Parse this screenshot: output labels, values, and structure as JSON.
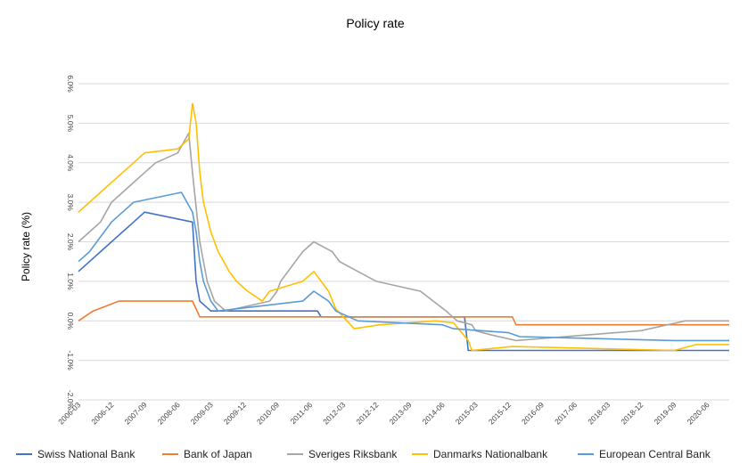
{
  "chart_data": {
    "type": "line",
    "title": "Policy rate",
    "xlabel": "",
    "ylabel": "Policy rate (%)",
    "ylim": [
      -2.0,
      6.0
    ],
    "y_ticks": [
      "6.0%",
      "5.0%",
      "4.0%",
      "3.0%",
      "2.0%",
      "1.0%",
      "0.0%",
      "-1.0%",
      "-2.0%"
    ],
    "y_tick_values": [
      6,
      5,
      4,
      3,
      2,
      1,
      0,
      -1,
      -2
    ],
    "x_range": [
      "2006-03",
      "2020-12"
    ],
    "x_ticks": [
      "2006-03",
      "2006-12",
      "2007-09",
      "2008-06",
      "2009-03",
      "2009-12",
      "2010-09",
      "2011-06",
      "2012-03",
      "2012-12",
      "2013-09",
      "2014-06",
      "2015-03",
      "2015-12",
      "2016-09",
      "2017-06",
      "2018-03",
      "2018-12",
      "2019-09",
      "2020-06"
    ],
    "grid": true,
    "legend_position": "bottom",
    "series": [
      {
        "name": "Swiss National Bank",
        "color": "#4472C4",
        "points": [
          [
            "2006-03",
            1.25
          ],
          [
            "2006-06",
            1.5
          ],
          [
            "2006-09",
            1.75
          ],
          [
            "2006-12",
            2.0
          ],
          [
            "2007-03",
            2.25
          ],
          [
            "2007-06",
            2.5
          ],
          [
            "2007-09",
            2.75
          ],
          [
            "2008-10",
            2.5
          ],
          [
            "2008-11",
            1.0
          ],
          [
            "2008-12",
            0.5
          ],
          [
            "2009-03",
            0.25
          ],
          [
            "2011-08",
            0.25
          ],
          [
            "2011-09",
            0.1
          ],
          [
            "2014-12",
            0.1
          ],
          [
            "2015-01",
            -0.75
          ],
          [
            "2020-12",
            -0.75
          ]
        ]
      },
      {
        "name": "Bank of Japan",
        "color": "#ED7D31",
        "points": [
          [
            "2006-03",
            0.0
          ],
          [
            "2006-07",
            0.25
          ],
          [
            "2007-02",
            0.5
          ],
          [
            "2008-10",
            0.5
          ],
          [
            "2008-11",
            0.3
          ],
          [
            "2008-12",
            0.1
          ],
          [
            "2016-01",
            0.1
          ],
          [
            "2016-02",
            -0.1
          ],
          [
            "2020-12",
            -0.1
          ]
        ]
      },
      {
        "name": "Sveriges Riksbank",
        "color": "#A5A5A5",
        "points": [
          [
            "2006-03",
            2.0
          ],
          [
            "2006-06",
            2.25
          ],
          [
            "2006-09",
            2.5
          ],
          [
            "2006-12",
            3.0
          ],
          [
            "2007-03",
            3.25
          ],
          [
            "2007-06",
            3.5
          ],
          [
            "2007-09",
            3.75
          ],
          [
            "2007-12",
            4.0
          ],
          [
            "2008-06",
            4.25
          ],
          [
            "2008-09",
            4.75
          ],
          [
            "2008-10",
            3.75
          ],
          [
            "2008-12",
            2.0
          ],
          [
            "2009-02",
            1.0
          ],
          [
            "2009-04",
            0.5
          ],
          [
            "2009-07",
            0.25
          ],
          [
            "2010-07",
            0.5
          ],
          [
            "2010-09",
            0.75
          ],
          [
            "2010-10",
            1.0
          ],
          [
            "2010-12",
            1.25
          ],
          [
            "2011-02",
            1.5
          ],
          [
            "2011-04",
            1.75
          ],
          [
            "2011-07",
            2.0
          ],
          [
            "2011-12",
            1.75
          ],
          [
            "2012-02",
            1.5
          ],
          [
            "2012-12",
            1.0
          ],
          [
            "2013-12",
            0.75
          ],
          [
            "2014-07",
            0.25
          ],
          [
            "2014-10",
            0.0
          ],
          [
            "2015-02",
            -0.1
          ],
          [
            "2015-03",
            -0.25
          ],
          [
            "2015-07",
            -0.35
          ],
          [
            "2016-02",
            -0.5
          ],
          [
            "2018-12",
            -0.25
          ],
          [
            "2019-12",
            0.0
          ],
          [
            "2020-12",
            0.0
          ]
        ]
      },
      {
        "name": "Danmarks Nationalbank",
        "color": "#FFC000",
        "points": [
          [
            "2006-03",
            2.75
          ],
          [
            "2006-06",
            3.0
          ],
          [
            "2006-09",
            3.25
          ],
          [
            "2006-12",
            3.5
          ],
          [
            "2007-03",
            3.75
          ],
          [
            "2007-06",
            4.0
          ],
          [
            "2007-09",
            4.25
          ],
          [
            "2008-06",
            4.35
          ],
          [
            "2008-09",
            4.6
          ],
          [
            "2008-10",
            5.5
          ],
          [
            "2008-11",
            5.0
          ],
          [
            "2008-12",
            3.75
          ],
          [
            "2009-01",
            3.0
          ],
          [
            "2009-03",
            2.25
          ],
          [
            "2009-05",
            1.75
          ],
          [
            "2009-08",
            1.25
          ],
          [
            "2009-10",
            1.0
          ],
          [
            "2010-01",
            0.75
          ],
          [
            "2010-05",
            0.5
          ],
          [
            "2010-07",
            0.75
          ],
          [
            "2011-04",
            1.0
          ],
          [
            "2011-07",
            1.25
          ],
          [
            "2011-11",
            0.75
          ],
          [
            "2012-01",
            0.3
          ],
          [
            "2012-06",
            -0.2
          ],
          [
            "2013-01",
            -0.1
          ],
          [
            "2014-04",
            0.0
          ],
          [
            "2014-09",
            -0.05
          ],
          [
            "2015-01",
            -0.5
          ],
          [
            "2015-02",
            -0.75
          ],
          [
            "2016-01",
            -0.65
          ],
          [
            "2019-09",
            -0.75
          ],
          [
            "2020-03",
            -0.6
          ],
          [
            "2020-12",
            -0.6
          ]
        ]
      },
      {
        "name": "European Central Bank",
        "color": "#5B9BD5",
        "points": [
          [
            "2006-03",
            1.5
          ],
          [
            "2006-06",
            1.75
          ],
          [
            "2006-08",
            2.0
          ],
          [
            "2006-10",
            2.25
          ],
          [
            "2006-12",
            2.5
          ],
          [
            "2007-03",
            2.75
          ],
          [
            "2007-06",
            3.0
          ],
          [
            "2008-07",
            3.25
          ],
          [
            "2008-10",
            2.75
          ],
          [
            "2008-11",
            2.25
          ],
          [
            "2008-12",
            1.5
          ],
          [
            "2009-01",
            1.0
          ],
          [
            "2009-03",
            0.5
          ],
          [
            "2009-05",
            0.25
          ],
          [
            "2011-04",
            0.5
          ],
          [
            "2011-07",
            0.75
          ],
          [
            "2011-11",
            0.5
          ],
          [
            "2012-01",
            0.25
          ],
          [
            "2012-07",
            0.0
          ],
          [
            "2014-06",
            -0.1
          ],
          [
            "2014-09",
            -0.2
          ],
          [
            "2015-12",
            -0.3
          ],
          [
            "2016-03",
            -0.4
          ],
          [
            "2019-09",
            -0.5
          ],
          [
            "2020-12",
            -0.5
          ]
        ]
      }
    ]
  }
}
